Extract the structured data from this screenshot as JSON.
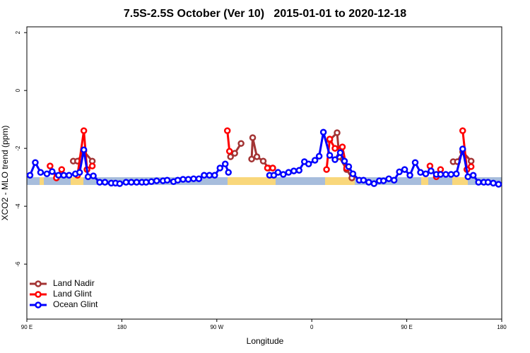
{
  "chart_data": {
    "type": "line",
    "title": "7.5S-2.5S October (Ver 10)   2015-01-01 to 2020-12-18",
    "x_label": "Longitude",
    "y_label": "XCO2 - MLO trend (ppm)",
    "xlim": [
      90,
      540
    ],
    "ylim": [
      -7.9,
      2.2
    ],
    "xticks": [
      {
        "value": 90,
        "label": "90 E"
      },
      180,
      {
        "value": 270,
        "label": "90 W"
      },
      {
        "value": 360,
        "label": "0"
      },
      {
        "value": 450,
        "label": "90 E"
      },
      {
        "value": 540,
        "label": "180"
      }
    ],
    "yticks": [
      -6,
      -4,
      -2,
      0,
      2
    ],
    "legend": "bottom-left",
    "series": [
      {
        "name": "Land Nadir",
        "color": "#a33434",
        "x": [
          134,
          138,
          144,
          152,
          null,
          283,
          287,
          293,
          null,
          303,
          304,
          308,
          314,
          319,
          323,
          null,
          377,
          384,
          386,
          393,
          398,
          null,
          494,
          498,
          503,
          511
        ],
        "values": [
          -2.44,
          -2.44,
          -2.1,
          -2.44,
          null,
          -2.29,
          -2.17,
          -1.83,
          null,
          -2.37,
          -1.63,
          -2.29,
          -2.44,
          -2.68,
          -2.68,
          null,
          -1.71,
          -1.46,
          -2.29,
          -2.73,
          -3.02,
          null,
          -2.46,
          -2.46,
          -2.12,
          -2.44
        ]
      },
      {
        "name": "Land Glint",
        "color": "#ff0000",
        "x": [
          112,
          118,
          123,
          null,
          138,
          144,
          147,
          152,
          null,
          280,
          282,
          null,
          318,
          323,
          null,
          374,
          377,
          382,
          389,
          393,
          null,
          472,
          478,
          482,
          null,
          503,
          507,
          511
        ],
        "values": [
          -2.61,
          -3.02,
          -2.73,
          null,
          -2.93,
          -1.39,
          -2.73,
          -2.61,
          null,
          -1.39,
          -2.1,
          null,
          -2.68,
          -2.68,
          null,
          -2.73,
          -1.68,
          -2.0,
          -1.95,
          -2.68,
          null,
          -2.61,
          -2.98,
          -2.73,
          null,
          -1.39,
          -2.73,
          -2.63
        ]
      },
      {
        "name": "Ocean Glint",
        "color": "#0000ff",
        "x": [
          93,
          98,
          103,
          109,
          114,
          120,
          125,
          130,
          136,
          140,
          144,
          148,
          153,
          159,
          164,
          170,
          174,
          178,
          184,
          189,
          194,
          199,
          203,
          208,
          213,
          219,
          223,
          229,
          233,
          238,
          243,
          248,
          253,
          258,
          263,
          268,
          273,
          278,
          281,
          null,
          320,
          324,
          328,
          333,
          338,
          343,
          348,
          353,
          357,
          363,
          367,
          371,
          377,
          382,
          387,
          391,
          395,
          399,
          405,
          409,
          414,
          419,
          424,
          428,
          433,
          438,
          443,
          448,
          453,
          458,
          463,
          468,
          473,
          478,
          482,
          487,
          492,
          497,
          503,
          508,
          513,
          518,
          523,
          527,
          532,
          537
        ],
        "values": [
          -2.93,
          -2.49,
          -2.83,
          -2.88,
          -2.8,
          -2.93,
          -2.93,
          -2.93,
          -2.88,
          -2.83,
          -2.05,
          -2.98,
          -2.95,
          -3.17,
          -3.17,
          -3.2,
          -3.2,
          -3.22,
          -3.17,
          -3.17,
          -3.17,
          -3.17,
          -3.17,
          -3.15,
          -3.12,
          -3.12,
          -3.1,
          -3.15,
          -3.1,
          -3.07,
          -3.07,
          -3.05,
          -3.05,
          -2.93,
          -2.93,
          -2.93,
          -2.68,
          -2.54,
          -2.83,
          null,
          -2.93,
          -2.93,
          -2.83,
          -2.9,
          -2.83,
          -2.78,
          -2.76,
          -2.46,
          -2.54,
          -2.41,
          -2.27,
          -1.44,
          -2.24,
          -2.39,
          -2.15,
          -2.44,
          -2.63,
          -2.88,
          -3.1,
          -3.1,
          -3.17,
          -3.22,
          -3.12,
          -3.12,
          -3.05,
          -3.1,
          -2.81,
          -2.73,
          -2.93,
          -2.49,
          -2.83,
          -2.88,
          -2.78,
          -2.9,
          -2.9,
          -2.9,
          -2.9,
          -2.88,
          -2.02,
          -2.98,
          -2.93,
          -3.17,
          -3.17,
          -3.17,
          -3.2,
          -3.24
        ]
      }
    ]
  }
}
